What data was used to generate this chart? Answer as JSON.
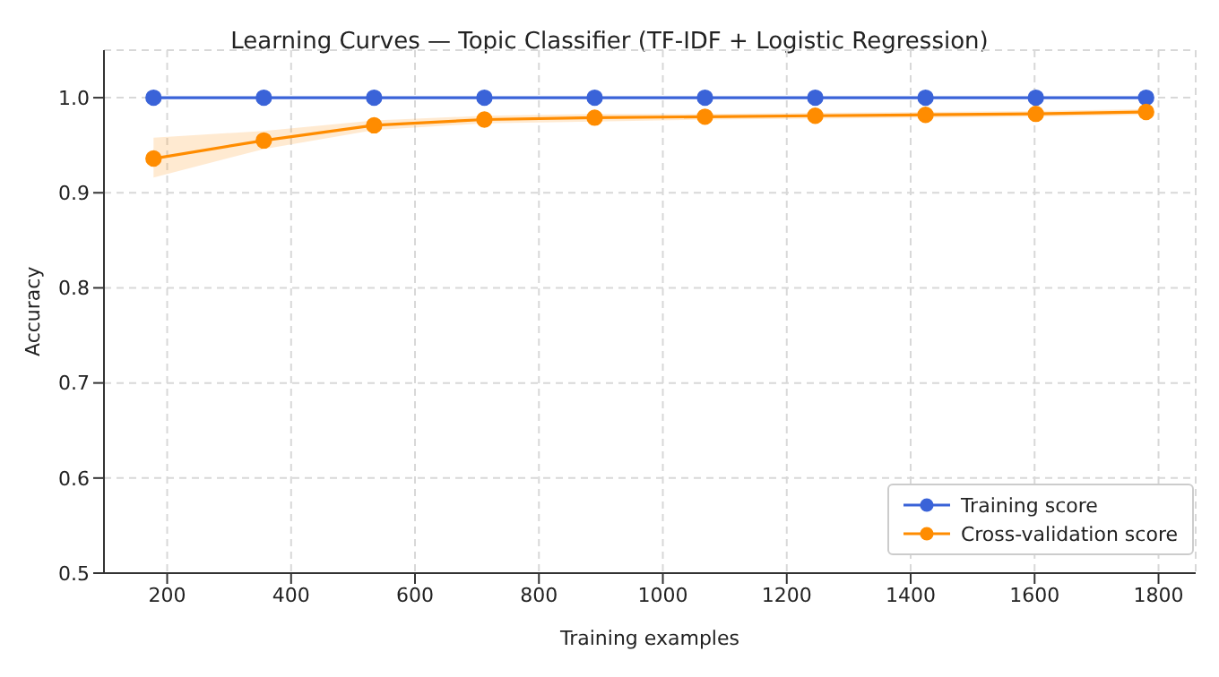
{
  "chart_data": {
    "type": "line",
    "title": "Learning Curves — Topic Classifier (TF-IDF + Logistic Regression)",
    "xlabel": "Training examples",
    "ylabel": "Accuracy",
    "x": [
      178,
      356,
      534,
      712,
      890,
      1068,
      1246,
      1424,
      1602,
      1780
    ],
    "series": [
      {
        "name": "Training score",
        "color": "#3a63d8",
        "values": [
          1,
          1,
          1,
          1,
          1,
          1,
          1,
          1,
          1,
          1
        ]
      },
      {
        "name": "Cross-validation score",
        "color": "#ff8c00",
        "values": [
          0.936,
          0.955,
          0.971,
          0.977,
          0.979,
          0.98,
          0.981,
          0.982,
          0.983,
          0.985
        ],
        "lower": [
          0.916,
          0.946,
          0.966,
          0.973,
          0.975,
          0.977,
          0.978,
          0.979,
          0.98,
          0.982
        ],
        "upper": [
          0.958,
          0.965,
          0.976,
          0.981,
          0.983,
          0.983,
          0.984,
          0.985,
          0.986,
          0.988
        ]
      }
    ],
    "xlim": [
      98,
      1860
    ],
    "xticks": [
      200,
      400,
      600,
      800,
      1000,
      1200,
      1400,
      1600,
      1800
    ],
    "ylim": [
      0.5,
      1.05
    ],
    "yticks": [
      0.5,
      0.6,
      0.7,
      0.8,
      0.9,
      {
        "value": 1,
        "label": "1.0"
      }
    ],
    "grid": true,
    "legend": "bottom right",
    "marker": "circle",
    "line_style": "solid"
  }
}
